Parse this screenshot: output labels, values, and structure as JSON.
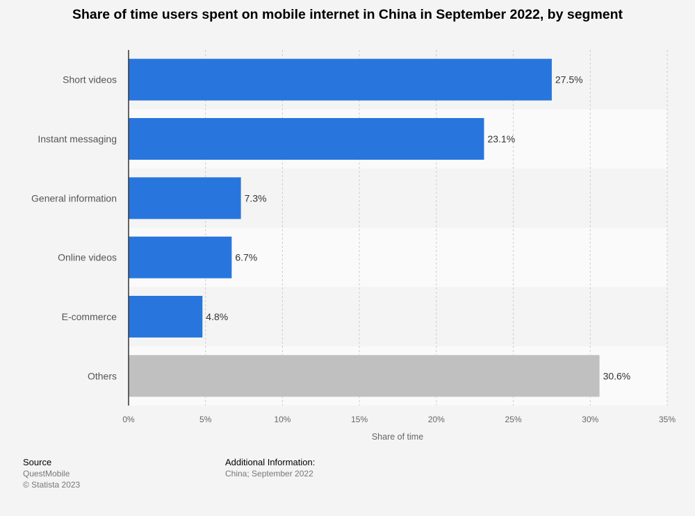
{
  "chart_data": {
    "type": "bar",
    "orientation": "horizontal",
    "title": "Share of time users spent on mobile internet in China in September 2022, by segment",
    "categories": [
      "Short videos",
      "Instant messaging",
      "General information",
      "Online videos",
      "E-commerce",
      "Others"
    ],
    "values": [
      27.5,
      23.1,
      7.3,
      6.7,
      4.8,
      30.6
    ],
    "value_labels": [
      "27.5%",
      "23.1%",
      "7.3%",
      "6.7%",
      "4.8%",
      "30.6%"
    ],
    "bar_colors": [
      "#2876dd",
      "#2876dd",
      "#2876dd",
      "#2876dd",
      "#2876dd",
      "#c0c0c0"
    ],
    "xlabel": "Share of time",
    "ylabel": "",
    "xlim": [
      0,
      35
    ],
    "xticks": [
      0,
      5,
      10,
      15,
      20,
      25,
      30,
      35
    ],
    "xtick_labels": [
      "0%",
      "5%",
      "10%",
      "15%",
      "20%",
      "25%",
      "30%",
      "35%"
    ],
    "grid": true,
    "legend": "none"
  },
  "footer": {
    "source_heading": "Source",
    "source_lines": [
      "QuestMobile",
      "© Statista 2023"
    ],
    "info_heading": "Additional Information:",
    "info_lines": [
      "China; September 2022"
    ]
  },
  "colors": {
    "primary_bar": "#2876dd",
    "other_bar": "#c0c0c0",
    "band_dark": "#f4f4f4",
    "band_light": "#fafafa",
    "grid": "#cccccc",
    "axis": "#333333"
  }
}
